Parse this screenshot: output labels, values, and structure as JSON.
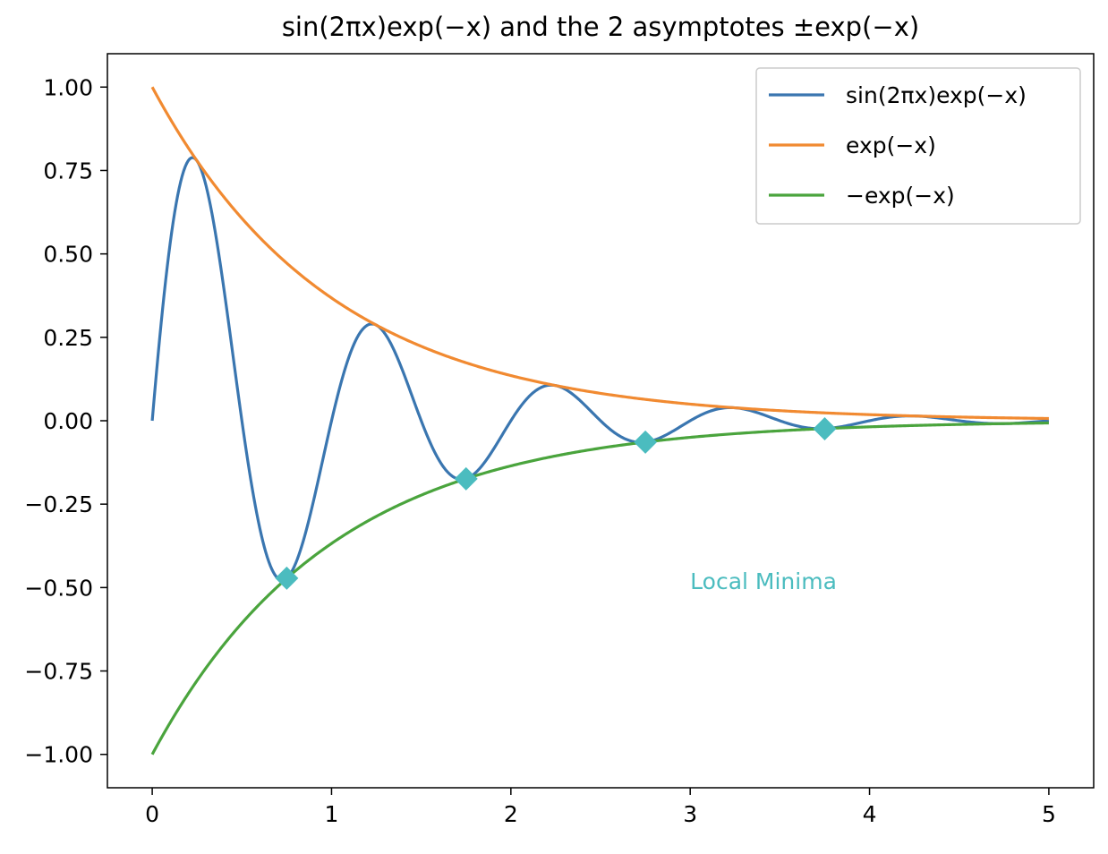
{
  "chart_data": {
    "type": "line",
    "title": "sin(2πx)exp(−x) and the 2 asymptotes ±exp(−x)",
    "xlabel": "",
    "ylabel": "",
    "xlim": [
      -0.25,
      5.25
    ],
    "ylim": [
      -1.1,
      1.1
    ],
    "x_ticks": [
      0,
      1,
      2,
      3,
      4,
      5
    ],
    "x_tick_labels": [
      "0",
      "1",
      "2",
      "3",
      "4",
      "5"
    ],
    "y_ticks": [
      1.0,
      0.75,
      0.5,
      0.25,
      0.0,
      -0.25,
      -0.5,
      -0.75,
      -1.0
    ],
    "y_tick_labels": [
      "1.00",
      "0.75",
      "0.50",
      "0.25",
      "0.00",
      "−0.25",
      "−0.50",
      "−0.75",
      "−1.00"
    ],
    "grid": false,
    "legend_position": "top-right",
    "x_range": [
      0,
      5
    ],
    "series": [
      {
        "name": "sin(2πx)exp(−x)",
        "function": "sin(2*pi*x)*exp(-x)",
        "color": "#3a76b0"
      },
      {
        "name": "exp(−x)",
        "function": "exp(-x)",
        "color": "#f18a31"
      },
      {
        "name": "−exp(−x)",
        "function": "-exp(-x)",
        "color": "#4aa43d"
      }
    ],
    "markers": {
      "label": "Local Minima",
      "color": "#4bbcbf",
      "shape": "diamond",
      "points": [
        {
          "x": 0.75,
          "y": -0.472
        },
        {
          "x": 1.75,
          "y": -0.174
        },
        {
          "x": 2.75,
          "y": -0.064
        },
        {
          "x": 3.75,
          "y": -0.024
        }
      ]
    },
    "annotation": {
      "text": "Local Minima",
      "x": 3.0,
      "y": -0.48,
      "color": "#4bbcbf"
    }
  }
}
